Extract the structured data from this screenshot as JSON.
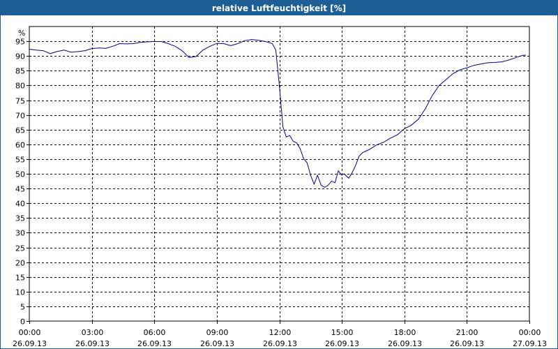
{
  "window": {
    "title": "relative Luftfeuchtigkeit [%]"
  },
  "colors": {
    "titlebar": "#1e5e96",
    "series": "#00008b",
    "grid": "#000000"
  },
  "chart_data": {
    "type": "line",
    "title": "relative Luftfeuchtigkeit [%]",
    "ylabel": "%",
    "ylim": [
      0,
      100
    ],
    "yticks": [
      0,
      5,
      10,
      15,
      20,
      25,
      30,
      35,
      40,
      45,
      50,
      55,
      60,
      65,
      70,
      75,
      80,
      85,
      90,
      95
    ],
    "xlim": [
      0,
      24
    ],
    "xticks": [
      {
        "time": "00:00",
        "date": "26.09.13"
      },
      {
        "time": "03:00",
        "date": "26.09.13"
      },
      {
        "time": "06:00",
        "date": "26.09.13"
      },
      {
        "time": "09:00",
        "date": "26.09.13"
      },
      {
        "time": "12:00",
        "date": "26.09.13"
      },
      {
        "time": "15:00",
        "date": "26.09.13"
      },
      {
        "time": "18:00",
        "date": "26.09.13"
      },
      {
        "time": "21:00",
        "date": "26.09.13"
      },
      {
        "time": "00:00",
        "date": "27.09.13"
      }
    ],
    "grid": true,
    "series": [
      {
        "x": [
          0,
          0.33,
          0.67,
          1.0,
          1.33,
          1.67,
          2.0,
          2.33,
          2.67,
          3.0,
          3.33,
          3.67,
          4.0,
          4.33,
          4.67,
          5.0,
          5.33,
          5.67,
          6.0,
          6.33,
          6.67,
          7.0,
          7.33,
          7.67,
          8.0,
          8.33,
          8.67,
          9.0,
          9.33,
          9.67,
          10.0,
          10.33,
          10.67,
          11.0,
          11.33,
          11.67,
          11.83,
          12.0,
          12.17,
          12.33,
          12.5,
          12.67,
          12.83,
          13.0,
          13.17,
          13.33,
          13.5,
          13.67,
          13.83,
          14.0,
          14.17,
          14.33,
          14.5,
          14.67,
          14.83,
          15.0,
          15.1,
          15.33,
          15.5,
          15.67,
          15.83,
          16.0,
          16.33,
          16.67,
          17.0,
          17.33,
          17.67,
          18.0,
          18.33,
          18.67,
          19.0,
          19.33,
          19.67,
          20.0,
          20.33,
          20.67,
          21.0,
          21.33,
          21.67,
          22.0,
          22.33,
          22.67,
          23.0,
          23.33,
          23.67,
          23.83
        ],
        "y": [
          92.3,
          92.0,
          91.8,
          90.8,
          91.5,
          92.0,
          91.3,
          91.5,
          91.8,
          92.5,
          92.7,
          92.6,
          93.3,
          94.2,
          94.1,
          94.2,
          94.6,
          94.8,
          94.9,
          94.9,
          94.2,
          93.3,
          91.8,
          89.5,
          89.8,
          92.0,
          93.3,
          94.3,
          94.2,
          93.5,
          94.2,
          95.2,
          95.6,
          95.3,
          94.9,
          94.2,
          92.0,
          80.0,
          66.0,
          62.5,
          63.0,
          61.0,
          60.5,
          58.5,
          55.0,
          53.8,
          49.5,
          46.5,
          49.5,
          46.2,
          45.4,
          46.0,
          47.5,
          47.0,
          51.0,
          49.5,
          50.0,
          48.5,
          50.5,
          53.0,
          56.0,
          57.2,
          58.3,
          59.8,
          60.7,
          62.1,
          63.3,
          65.3,
          66.5,
          68.5,
          72.0,
          76.5,
          80.0,
          82.0,
          84.0,
          85.3,
          86.0,
          86.8,
          87.3,
          87.7,
          87.8,
          88.0,
          88.6,
          89.4,
          90.2,
          90.3
        ]
      }
    ]
  }
}
